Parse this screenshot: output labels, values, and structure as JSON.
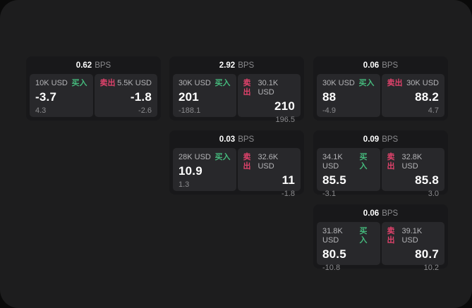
{
  "labels": {
    "bps": "BPS",
    "buy": "买入",
    "sell": "卖出"
  },
  "colors": {
    "buy": "#45b97c",
    "sell": "#e0426b",
    "panel_bg": "#1d1d1e",
    "card_bg": "#18181a",
    "tile_bg": "#28282b"
  },
  "layout": {
    "cols": [
      37,
      240,
      444
    ],
    "rows": [
      80,
      185,
      290
    ]
  },
  "cards": [
    {
      "col": 1,
      "row": 1,
      "bps": "0.62",
      "buy": {
        "amount": "10K USD",
        "value": "-3.7",
        "sub": "4.3"
      },
      "sell": {
        "amount": "5.5K USD",
        "value": "-1.8",
        "sub": "-2.6"
      }
    },
    {
      "col": 2,
      "row": 1,
      "bps": "2.92",
      "buy": {
        "amount": "30K USD",
        "value": "201",
        "sub": "-188.1"
      },
      "sell": {
        "amount": "30.1K USD",
        "value": "210",
        "sub": "196.5"
      }
    },
    {
      "col": 3,
      "row": 1,
      "bps": "0.06",
      "buy": {
        "amount": "30K USD",
        "value": "88",
        "sub": "-4.9"
      },
      "sell": {
        "amount": "30K USD",
        "value": "88.2",
        "sub": "4.7"
      }
    },
    {
      "col": 2,
      "row": 2,
      "bps": "0.03",
      "buy": {
        "amount": "28K USD",
        "value": "10.9",
        "sub": "1.3"
      },
      "sell": {
        "amount": "32.6K USD",
        "value": "11",
        "sub": "-1.8"
      }
    },
    {
      "col": 3,
      "row": 2,
      "bps": "0.09",
      "buy": {
        "amount": "34.1K USD",
        "value": "85.5",
        "sub": "-3.1"
      },
      "sell": {
        "amount": "32.8K USD",
        "value": "85.8",
        "sub": "3.0"
      }
    },
    {
      "col": 3,
      "row": 3,
      "bps": "0.06",
      "buy": {
        "amount": "31.8K USD",
        "value": "80.5",
        "sub": "-10.8"
      },
      "sell": {
        "amount": "39.1K USD",
        "value": "80.7",
        "sub": "10.2"
      }
    }
  ]
}
